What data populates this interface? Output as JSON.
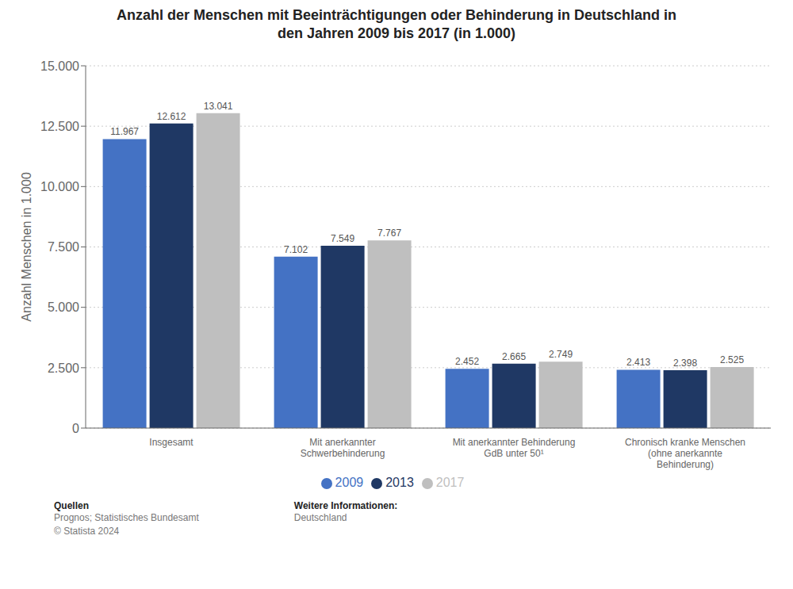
{
  "chart_data": {
    "type": "bar",
    "title": "Anzahl der Menschen mit Beeinträchtigungen oder Behinderung in Deutschland in\nden Jahren 2009 bis 2017 (in 1.000)",
    "ylabel": "Anzahl Menschen in 1.000",
    "categories": [
      "Insgesamt",
      "Mit anerkannter\nSchwerbehinderung",
      "Mit anerkannter Behinderung\nGdB unter 50¹",
      "Chronisch kranke Menschen\n(ohne anerkannte\nBehinderung)"
    ],
    "series": [
      {
        "name": "2009",
        "color": "#4472c4",
        "values": [
          11967,
          7102,
          2452,
          2413
        ],
        "value_labels": [
          "11.967",
          "7.102",
          "2.452",
          "2.413"
        ]
      },
      {
        "name": "2013",
        "color": "#1f3864",
        "values": [
          12612,
          7549,
          2665,
          2398
        ],
        "value_labels": [
          "12.612",
          "7.549",
          "2.665",
          "2.398"
        ]
      },
      {
        "name": "2017",
        "color": "#bfbfbf",
        "values": [
          13041,
          7767,
          2749,
          2525
        ],
        "value_labels": [
          "13.041",
          "7.767",
          "2.749",
          "2.525"
        ]
      }
    ],
    "ylim": [
      0,
      15000
    ],
    "yticks": [
      0,
      {
        "value": 2500,
        "label": "2.500"
      },
      {
        "value": 5000,
        "label": "5.000"
      },
      {
        "value": 7500,
        "label": "7.500"
      },
      {
        "value": 10000,
        "label": "10.000"
      },
      {
        "value": 12500,
        "label": "12.500"
      },
      {
        "value": 15000,
        "label": "15.000"
      }
    ],
    "grid": true,
    "legend": "bottom",
    "data_labels": true,
    "annotations": [
      "Quellen",
      "Prognos; Statistisches Bundesamt\n© Statista 2024",
      "Weitere Informationen:",
      "Deutschland"
    ]
  }
}
